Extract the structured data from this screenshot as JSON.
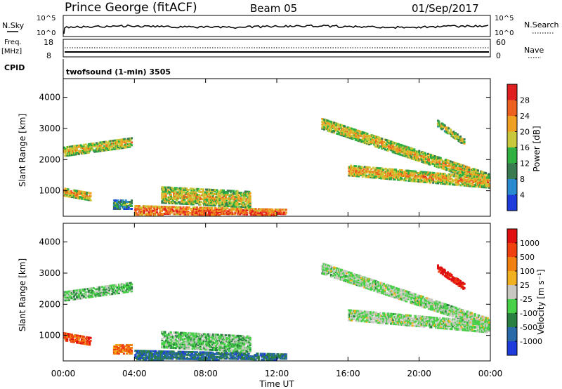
{
  "header": {
    "station": "Prince George (fitACF)",
    "beam": "Beam 05",
    "date": "01/Sep/2017"
  },
  "summary": {
    "nsky_label": "N.Sky",
    "nsky_top_tick": "10^5",
    "nsky_bottom_tick": "10^0",
    "nsearch_label": "N.Search",
    "nsearch_top_tick": "10^5",
    "nsearch_bottom_tick": "10^0",
    "freq_label": "Freq.",
    "freq_unit": "[MHz]",
    "freq_top_tick": "18",
    "freq_bottom_tick": "8",
    "nave_label": "Nave",
    "nave_top_tick": "60",
    "nave_bottom_tick": "0",
    "cpid_label": "CPID",
    "cpid_text": "twofsound (1-min) 3505"
  },
  "colors": {
    "power": [
      "#1e3cdc",
      "#2a8ad0",
      "#3a7a50",
      "#2fb040",
      "#c8c83a",
      "#f0a020",
      "#ee6020",
      "#e02020"
    ],
    "velocity": [
      "#1e3cdc",
      "#2a6aa8",
      "#2a8040",
      "#48d048",
      "#c8c8c0",
      "#f0b020",
      "#f08010",
      "#f04010",
      "#e01010"
    ]
  },
  "chart_data": [
    {
      "type": "heatmap",
      "name": "power",
      "ylabel": "Slant Range [km]",
      "xlabel": "",
      "x_ticks": [
        "00:00",
        "04:00",
        "08:00",
        "12:00",
        "16:00",
        "20:00",
        "00:00"
      ],
      "y_ticks": [
        "1000",
        "2000",
        "3000",
        "4000"
      ],
      "xlim_hours": [
        0,
        24
      ],
      "ylim_km": [
        180,
        4600
      ],
      "colorbar": {
        "label": "Power [dB]",
        "ticks": [
          "28",
          "24",
          "20",
          "16",
          "12",
          "8",
          "4"
        ]
      },
      "echo_bands": [
        {
          "t0": 0.0,
          "t1": 3.8,
          "r_start": 2300,
          "r_end": 2600,
          "width": 300,
          "level": 0.55
        },
        {
          "t0": 0.0,
          "t1": 1.5,
          "r_start": 1000,
          "r_end": 850,
          "width": 250,
          "level": 0.6
        },
        {
          "t0": 2.8,
          "t1": 3.8,
          "r_start": 600,
          "r_end": 600,
          "width": 300,
          "level": 0.3
        },
        {
          "t0": 4.0,
          "t1": 12.5,
          "r_start": 400,
          "r_end": 280,
          "width": 350,
          "level": 0.75
        },
        {
          "t0": 5.5,
          "t1": 10.5,
          "r_start": 900,
          "r_end": 750,
          "width": 500,
          "level": 0.55
        },
        {
          "t0": 14.5,
          "t1": 24.0,
          "r_start": 3200,
          "r_end": 1400,
          "width": 350,
          "level": 0.55
        },
        {
          "t0": 16.0,
          "t1": 24.0,
          "r_start": 1700,
          "r_end": 1300,
          "width": 350,
          "level": 0.6
        },
        {
          "t0": 21.0,
          "t1": 22.5,
          "r_start": 3200,
          "r_end": 2600,
          "width": 200,
          "level": 0.5
        }
      ]
    },
    {
      "type": "heatmap",
      "name": "velocity",
      "ylabel": "Slant Range [km]",
      "xlabel": "Time UT",
      "x_ticks": [
        "00:00",
        "04:00",
        "08:00",
        "12:00",
        "16:00",
        "20:00",
        "00:00"
      ],
      "y_ticks": [
        "1000",
        "2000",
        "3000",
        "4000"
      ],
      "xlim_hours": [
        0,
        24
      ],
      "ylim_km": [
        180,
        4600
      ],
      "colorbar": {
        "label": "Velocity [m s⁻¹]",
        "ticks": [
          "1000",
          "500",
          "100",
          "25",
          "-25",
          "-100",
          "-500",
          "-1000"
        ]
      },
      "echo_bands": [
        {
          "t0": 0.0,
          "t1": 3.8,
          "r_start": 2300,
          "r_end": 2600,
          "width": 300,
          "level": 0.4
        },
        {
          "t0": 0.0,
          "t1": 1.5,
          "r_start": 1000,
          "r_end": 850,
          "width": 250,
          "level": 0.85
        },
        {
          "t0": 2.8,
          "t1": 3.8,
          "r_start": 600,
          "r_end": 600,
          "width": 300,
          "level": 0.75
        },
        {
          "t0": 4.0,
          "t1": 12.5,
          "r_start": 400,
          "r_end": 280,
          "width": 350,
          "level": 0.2
        },
        {
          "t0": 5.5,
          "t1": 10.5,
          "r_start": 900,
          "r_end": 750,
          "width": 500,
          "level": 0.4
        },
        {
          "t0": 14.5,
          "t1": 24.0,
          "r_start": 3200,
          "r_end": 1400,
          "width": 350,
          "level": 0.45
        },
        {
          "t0": 16.0,
          "t1": 24.0,
          "r_start": 1700,
          "r_end": 1300,
          "width": 350,
          "level": 0.45
        },
        {
          "t0": 21.0,
          "t1": 22.5,
          "r_start": 3200,
          "r_end": 2600,
          "width": 200,
          "level": 0.95
        }
      ]
    }
  ]
}
